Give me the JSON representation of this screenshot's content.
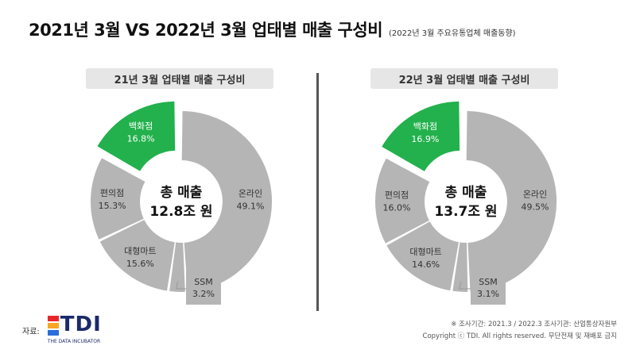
{
  "header": {
    "title": "2021년 3월 VS 2022년 3월 업태별 매출 구성비",
    "subtitle": "(2022년 3월 주요유통업체 매출동향)"
  },
  "colors": {
    "gray": "#b5b5b5",
    "green": "#22b14c",
    "header_bg": "#e6e6e6",
    "divider": "#555555"
  },
  "chart_data": [
    {
      "type": "pie",
      "title": "21년 3월 업태별 매출 구성비",
      "center_label": "총 매출",
      "center_value": "12.8조 원",
      "slices": [
        {
          "label": "온라인",
          "value": 49.1,
          "display": "49.1%",
          "color": "#b5b5b5"
        },
        {
          "label": "SSM",
          "value": 3.2,
          "display": "3.2%",
          "color": "#b5b5b5"
        },
        {
          "label": "대형마트",
          "value": 15.6,
          "display": "15.6%",
          "color": "#b5b5b5"
        },
        {
          "label": "편의점",
          "value": 15.3,
          "display": "15.3%",
          "color": "#b5b5b5"
        },
        {
          "label": "백화점",
          "value": 16.8,
          "display": "16.8%",
          "color": "#22b14c"
        }
      ]
    },
    {
      "type": "pie",
      "title": "22년 3월 업태별 매출 구성비",
      "center_label": "총 매출",
      "center_value": "13.7조 원",
      "slices": [
        {
          "label": "온라인",
          "value": 49.5,
          "display": "49.5%",
          "color": "#b5b5b5"
        },
        {
          "label": "SSM",
          "value": 3.1,
          "display": "3.1%",
          "color": "#b5b5b5"
        },
        {
          "label": "대형마트",
          "value": 14.6,
          "display": "14.6%",
          "color": "#b5b5b5"
        },
        {
          "label": "편의점",
          "value": 16.0,
          "display": "16.0%",
          "color": "#b5b5b5"
        },
        {
          "label": "백화점",
          "value": 16.9,
          "display": "16.9%",
          "color": "#22b14c"
        }
      ]
    }
  ],
  "footer": {
    "source_label": "자료:",
    "logo_text": "TDI",
    "logo_tagline": "THE DATA INCUBATOR",
    "logo_colors": [
      "#e8262a",
      "#f5a623",
      "#2a6fdb"
    ],
    "period_note": "※ 조사기간: 2021.3 / 2022.3   조사기관: 산업통상자원부",
    "copyright": "Copyright ⓒ TDI. All rights reserved. 무단전재 및 재배포 금지"
  }
}
